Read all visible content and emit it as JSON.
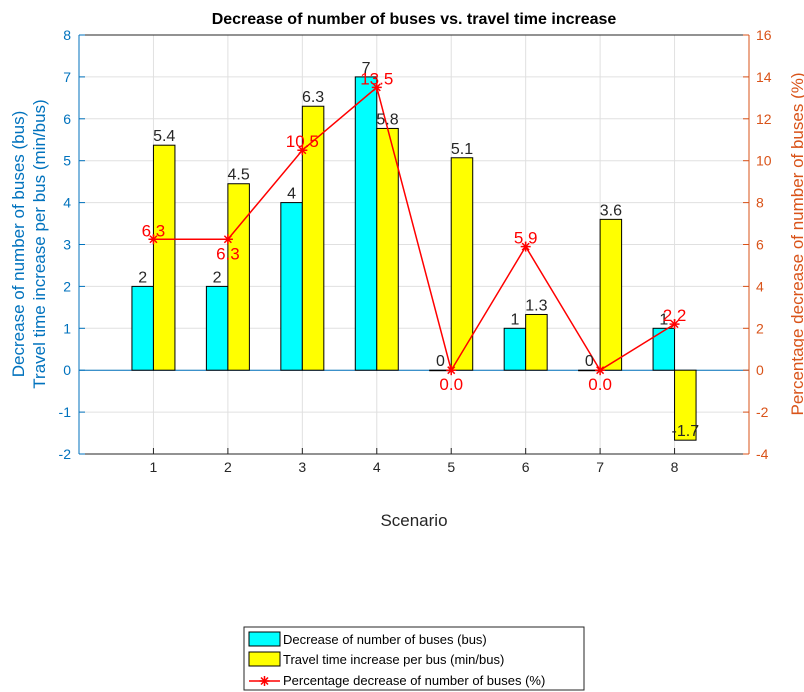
{
  "chart_data": {
    "type": "bar",
    "title": "Decrease of number of buses vs. travel time increase",
    "xlabel": "Scenario",
    "ylabel_left_line1": "Decrease of number of buses (bus)",
    "ylabel_left_line2": "Travel time increase per bus (min/bus)",
    "ylabel_right": "Percentage decrease of number of buses (%)",
    "categories": [
      "1",
      "2",
      "3",
      "4",
      "5",
      "6",
      "7",
      "8"
    ],
    "ylim_left": [
      -2,
      8
    ],
    "ylim_right": [
      -4,
      16
    ],
    "yticks_left": [
      -2,
      -1,
      0,
      1,
      2,
      3,
      4,
      5,
      6,
      7,
      8
    ],
    "yticks_right": [
      -4,
      -2,
      0,
      2,
      4,
      6,
      8,
      10,
      12,
      14,
      16
    ],
    "grid": true,
    "legend_position": "bottom-center",
    "series": [
      {
        "name": "Decrease of number of buses (bus)",
        "kind": "bar",
        "axis": "left",
        "color": "#00ffff",
        "values": [
          2,
          2,
          4,
          7,
          0,
          1,
          0,
          1
        ],
        "labels": [
          "2",
          "2",
          "4",
          "7",
          "0",
          "1",
          "0",
          "1"
        ]
      },
      {
        "name": "Travel time increase per bus (min/bus)",
        "kind": "bar",
        "axis": "left",
        "color": "#ffff00",
        "values": [
          5.37,
          4.45,
          6.3,
          5.77,
          5.07,
          1.33,
          3.6,
          -1.67
        ],
        "labels": [
          "5.4",
          "4.5",
          "6.3",
          "5.8",
          "5.1",
          "1.3",
          "3.6",
          "-1.7"
        ]
      },
      {
        "name": "Percentage decrease of number of buses (%)",
        "kind": "line",
        "axis": "right",
        "color": "#ff0000",
        "marker": "asterisk",
        "values": [
          6.25,
          6.25,
          10.5,
          13.5,
          0.0,
          5.9,
          0.0,
          2.2
        ],
        "labels": [
          "6.3",
          "6.3",
          "10.5",
          "13.5",
          "0.0",
          "5.9",
          "0.0",
          "2.2"
        ]
      }
    ],
    "colors": {
      "left_axis": "#0072bd",
      "right_axis": "#d95319",
      "line_labels": "#ff0000",
      "bar_labels": "#262626"
    }
  }
}
